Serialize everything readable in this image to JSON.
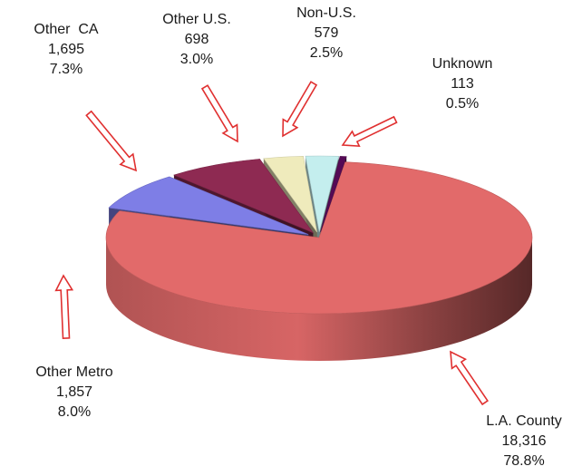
{
  "chart_data": {
    "type": "pie",
    "style": "3d-exploded",
    "slices": [
      {
        "name": "L.A. County",
        "value": 18316,
        "value_label": "18,316",
        "percent_label": "78.8%",
        "color": "#e26a6a"
      },
      {
        "name": "Other Metro",
        "value": 1857,
        "value_label": "1,857",
        "percent_label": "8.0%",
        "color": "#7e7ee6"
      },
      {
        "name": "Other  CA",
        "value": 1695,
        "value_label": "1,695",
        "percent_label": "7.3%",
        "color": "#8e2a52"
      },
      {
        "name": "Other U.S.",
        "value": 698,
        "value_label": "698",
        "percent_label": "3.0%",
        "color": "#efebbc"
      },
      {
        "name": "Non-U.S.",
        "value": 579,
        "value_label": "579",
        "percent_label": "2.5%",
        "color": "#c4eeee"
      },
      {
        "name": "Unknown",
        "value": 113,
        "value_label": "113",
        "percent_label": "0.5%",
        "color": "#550a55"
      }
    ],
    "arrow_color": "#e03030"
  }
}
